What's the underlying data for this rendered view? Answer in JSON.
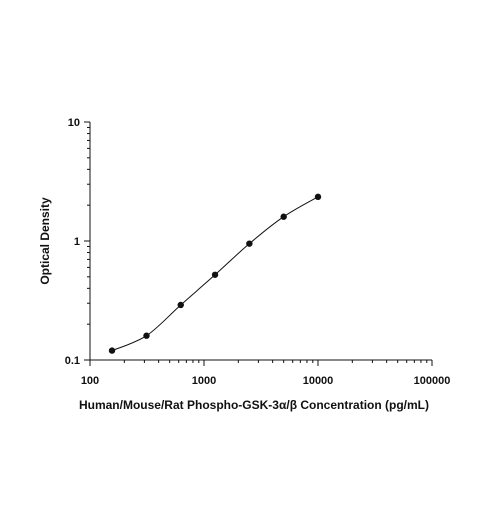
{
  "chart_data": {
    "type": "scatter",
    "title": "",
    "xlabel": "Human/Mouse/Rat Phospho-GSK-3α/β Concentration (pg/mL)",
    "ylabel": "Optical Density",
    "x_scale": "log",
    "y_scale": "log",
    "xlim": [
      100,
      100000
    ],
    "ylim": [
      0.1,
      10
    ],
    "x_ticks": [
      {
        "value": 100,
        "label": "100"
      },
      {
        "value": 1000,
        "label": "1000"
      },
      {
        "value": 10000,
        "label": "10000"
      },
      {
        "value": 100000,
        "label": "100000"
      }
    ],
    "y_ticks": [
      {
        "value": 0.1,
        "label": "0.1"
      },
      {
        "value": 1,
        "label": "1"
      },
      {
        "value": 10,
        "label": "10"
      }
    ],
    "grid": false,
    "legend": "none",
    "series": [
      {
        "points": [
          {
            "x": 156,
            "y": 0.12
          },
          {
            "x": 313,
            "y": 0.16
          },
          {
            "x": 625,
            "y": 0.29
          },
          {
            "x": 1250,
            "y": 0.52
          },
          {
            "x": 2500,
            "y": 0.95
          },
          {
            "x": 5000,
            "y": 1.6
          },
          {
            "x": 10000,
            "y": 2.35
          }
        ],
        "fit_curve": true
      }
    ],
    "colors": {
      "points": "#111111",
      "curve": "#111111",
      "axes": "#111111"
    }
  }
}
